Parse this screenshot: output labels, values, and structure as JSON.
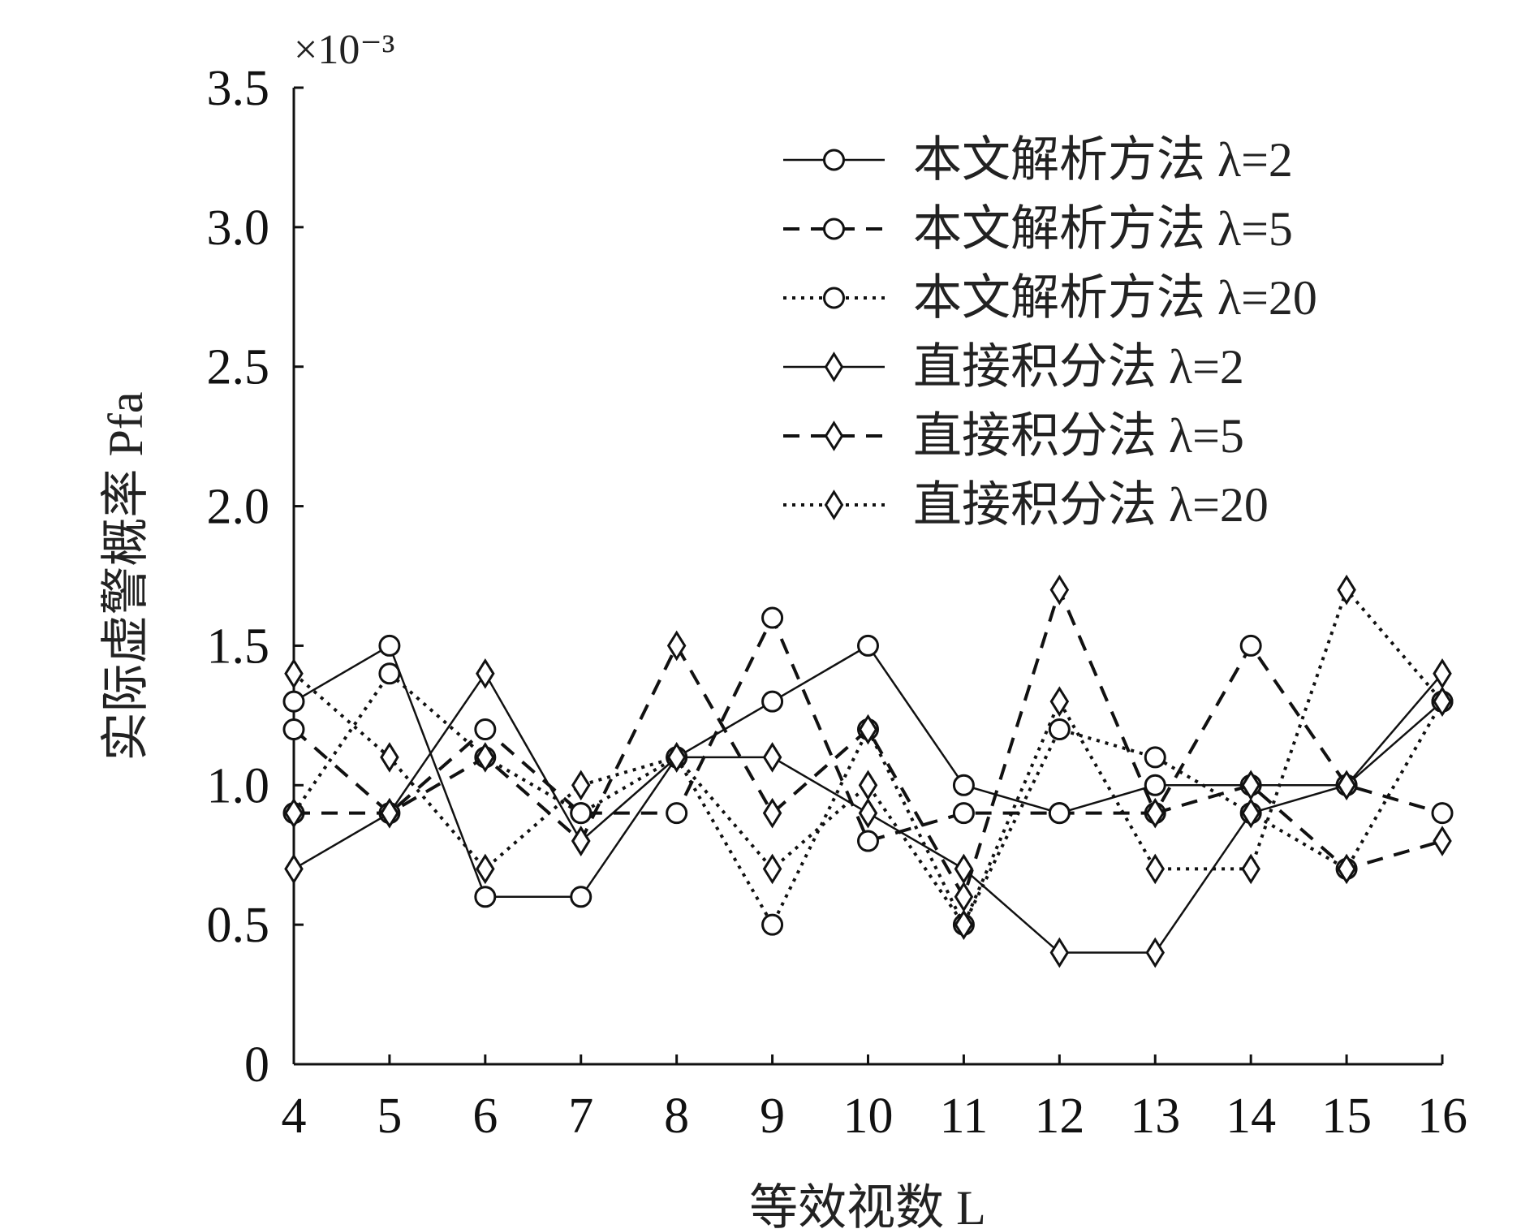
{
  "chart_data": {
    "type": "line",
    "title": "",
    "xlabel": "等效视数 L",
    "ylabel": "实际虚警概率 Pfa",
    "y_exponent_label": "×10⁻³",
    "x": [
      4,
      5,
      6,
      7,
      8,
      9,
      10,
      11,
      12,
      13,
      14,
      15,
      16
    ],
    "xlim": [
      4,
      16
    ],
    "ylim": [
      0,
      3.5
    ],
    "x_ticks": [
      "4",
      "5",
      "6",
      "7",
      "8",
      "9",
      "10",
      "11",
      "12",
      "13",
      "14",
      "15",
      "16"
    ],
    "y_ticks": [
      "0",
      "0.5",
      "1.0",
      "1.5",
      "2.0",
      "2.5",
      "3.0",
      "3.5"
    ],
    "y_tick_values": [
      0,
      0.5,
      1.0,
      1.5,
      2.0,
      2.5,
      3.0,
      3.5
    ],
    "grid": false,
    "legend_position": "top-right",
    "series": [
      {
        "name": "本文解析方法 λ=2",
        "marker": "circle",
        "dash": "solid",
        "values": [
          1.3,
          1.5,
          0.6,
          0.6,
          1.1,
          1.3,
          1.5,
          1.0,
          0.9,
          1.0,
          1.0,
          1.0,
          1.3
        ]
      },
      {
        "name": "本文解析方法 λ=5",
        "marker": "circle",
        "dash": "dashed",
        "values": [
          1.2,
          0.9,
          1.2,
          0.9,
          0.9,
          1.6,
          0.8,
          0.9,
          0.9,
          0.9,
          1.5,
          1.0,
          0.9
        ]
      },
      {
        "name": "本文解析方法 λ=20",
        "marker": "circle",
        "dash": "dotted",
        "values": [
          0.9,
          1.4,
          1.1,
          0.9,
          1.1,
          0.5,
          1.2,
          0.5,
          1.2,
          1.1,
          0.9,
          0.7,
          1.3
        ]
      },
      {
        "name": "直接积分法 λ=2",
        "marker": "diamond",
        "dash": "solid",
        "values": [
          0.7,
          0.9,
          1.4,
          0.8,
          1.1,
          1.1,
          0.9,
          0.7,
          0.4,
          0.4,
          0.9,
          1.0,
          1.4
        ]
      },
      {
        "name": "直接积分法 λ=5",
        "marker": "diamond",
        "dash": "dashed",
        "values": [
          0.9,
          0.9,
          1.1,
          0.8,
          1.5,
          0.9,
          1.2,
          0.6,
          1.7,
          0.9,
          1.0,
          0.7,
          0.8
        ]
      },
      {
        "name": "直接积分法 λ=20",
        "marker": "diamond",
        "dash": "dotted",
        "values": [
          1.4,
          1.1,
          0.7,
          1.0,
          1.1,
          0.7,
          1.0,
          0.5,
          1.3,
          0.7,
          0.7,
          1.7,
          1.3
        ]
      }
    ]
  }
}
